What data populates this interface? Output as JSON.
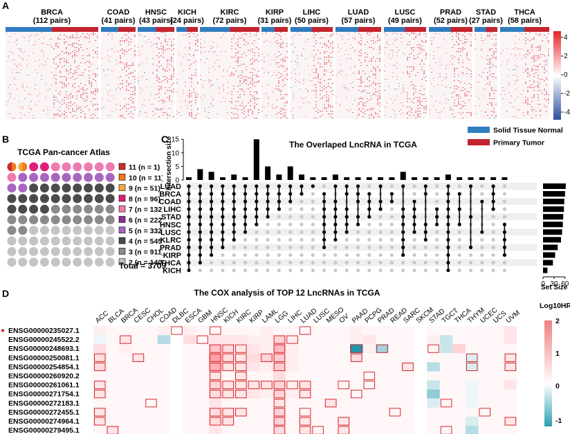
{
  "panels": {
    "a": "A",
    "b": "B",
    "c": "C",
    "d": "D"
  },
  "panel_a": {
    "cancers": [
      {
        "name": "BRCA",
        "pairs": "(112 pairs)"
      },
      {
        "name": "COAD",
        "pairs": "(41 pairs)"
      },
      {
        "name": "HNSC",
        "pairs": "(43 pairs)"
      },
      {
        "name": "KICH",
        "pairs": "(24 pairs)"
      },
      {
        "name": "KIRC",
        "pairs": "(72 pairs)"
      },
      {
        "name": "KIRP",
        "pairs": "(31 pairs)"
      },
      {
        "name": "LIHC",
        "pairs": "(50 pairs)"
      },
      {
        "name": "LUAD",
        "pairs": "(57 pairs)"
      },
      {
        "name": "LUSC",
        "pairs": "(49 pairs)"
      },
      {
        "name": "PRAD",
        "pairs": "(52 pairs)"
      },
      {
        "name": "STAD",
        "pairs": "(27 pairs)"
      },
      {
        "name": "THCA",
        "pairs": "(58 pairs)"
      }
    ],
    "colorbar_ticks": [
      "4",
      "2",
      "0",
      "-2",
      "-4"
    ],
    "group_legend": [
      {
        "label": "Solid Tissue Normal",
        "color": "#2f7cc0"
      },
      {
        "label": "Primary Tumor",
        "color": "#c4242e"
      }
    ]
  },
  "panel_b": {
    "title": "TCGA Pan-cancer Atlas",
    "legend": [
      {
        "label": "11 (n = 1)",
        "color": "#cc2a2a"
      },
      {
        "label": "10 (n = 11)",
        "color": "#ee7a1e"
      },
      {
        "label": "9 (n = 51)",
        "color": "#f4a640"
      },
      {
        "label": "8 (n = 96)",
        "color": "#e01e78"
      },
      {
        "label": "7 (n = 132)",
        "color": "#ee7bb0"
      },
      {
        "label": "6 (n = 222)",
        "color": "#8e2c96"
      },
      {
        "label": "5 (n = 332)",
        "color": "#a865c0"
      },
      {
        "label": "4 (n = 545)",
        "color": "#4b4b4b"
      },
      {
        "label": "3 (n = 911)",
        "color": "#8a8a8a"
      },
      {
        "label": "2 (n = 1408)",
        "color": "#c4c4c4"
      }
    ],
    "total": "Total = 3709"
  },
  "chart_data": [
    {
      "type": "bar",
      "title": "The Overlaped LncRNA in TCGA",
      "ylabel": "intersection size",
      "ylim": [
        0,
        15
      ],
      "yticks": [
        "0",
        "5",
        "10",
        "15"
      ],
      "sets": [
        "LUAD",
        "BRCA",
        "COAD",
        "LIHC",
        "STAD",
        "HNSC",
        "LUSC",
        "KLRC",
        "PRAD",
        "KIRP",
        "THCA",
        "KICH"
      ],
      "set_size_label": "Set Size",
      "set_size_ticks": [
        "0",
        "30",
        "60"
      ],
      "set_sizes": [
        62,
        60,
        58,
        57,
        55,
        54,
        52,
        49,
        40,
        33,
        27,
        12
      ],
      "values": [
        1,
        4,
        3,
        1,
        2,
        1,
        15,
        5,
        2,
        5,
        2,
        1,
        1,
        2,
        1,
        1,
        1,
        1,
        1,
        3,
        1,
        1,
        1,
        2,
        1,
        1,
        1,
        1,
        1
      ],
      "membership_rows": [
        [
          0,
          1,
          2,
          3,
          4,
          5,
          6,
          7,
          8,
          9,
          10,
          11
        ],
        [
          0,
          1,
          2,
          3,
          4,
          5,
          6,
          7,
          8,
          9,
          10
        ],
        [
          0,
          1,
          2,
          3,
          4,
          5,
          6,
          7,
          8,
          9
        ],
        [
          0,
          1,
          2,
          3,
          4,
          5,
          6,
          7,
          8
        ],
        [
          0,
          1,
          2,
          3,
          4,
          5,
          6,
          7
        ],
        [
          0,
          1,
          2,
          3,
          4,
          5,
          6
        ],
        [
          0,
          1,
          2,
          3,
          4,
          5
        ],
        [
          0,
          1,
          2,
          3,
          4
        ],
        [
          0,
          1,
          2,
          3
        ],
        [
          0,
          1,
          2
        ],
        [
          0,
          1
        ],
        [
          0
        ],
        [
          1,
          2,
          3,
          4,
          5,
          6,
          7,
          8
        ],
        [
          0,
          2,
          3,
          4,
          5,
          6,
          7
        ],
        [
          0,
          1,
          3,
          4,
          5,
          6
        ],
        [
          0,
          1,
          2,
          4,
          5
        ],
        [
          1,
          2,
          3,
          4
        ],
        [
          0,
          2,
          3
        ],
        [
          1,
          2
        ],
        [
          0,
          3,
          4,
          5,
          6,
          7,
          8,
          9
        ],
        [
          2,
          3,
          4,
          5,
          6
        ],
        [
          0,
          1,
          5,
          6,
          7
        ],
        [
          3,
          4,
          5
        ],
        [
          0,
          1,
          2,
          3,
          4,
          5,
          6,
          7,
          8,
          9,
          10,
          11
        ],
        [
          1,
          3,
          5
        ],
        [
          0,
          4,
          8
        ],
        [
          2,
          6
        ],
        [
          0,
          1,
          2,
          3
        ],
        [
          5,
          6,
          7,
          8,
          9
        ]
      ]
    },
    {
      "type": "heatmap",
      "title": "The COX analysis of TOP 12 LncRNAs in TCGA",
      "colorbar_title": "Log10HR",
      "colorbar_ticks": [
        "2",
        "1",
        "0",
        "-1"
      ],
      "x": [
        "ACC",
        "BLCA",
        "BRCA",
        "CESC",
        "CHOL",
        "COAD",
        "DLBC",
        "ESCA",
        "GBM",
        "HNSC",
        "KICH",
        "KIRC",
        "KIRP",
        "LAML",
        "LGG",
        "LIHC",
        "LUAD",
        "LUSC",
        "MESO",
        "OV",
        "PAAD",
        "PCPG",
        "PRAD",
        "READ",
        "SARC",
        "SKCM",
        "STAD",
        "TGCT",
        "THCA",
        "THYM",
        "UCEC",
        "UCS",
        "UVM"
      ],
      "y": [
        "ENSG00000235027.1",
        "ENSG00000245522.2",
        "ENSG00000248693.1",
        "ENSG00000250081.1",
        "ENSG00000254854.1",
        "ENSG00000260920.2",
        "ENSG00000261061.1",
        "ENSG00000271754.1",
        "ENSG00000272183.1",
        "ENSG00000272455.1",
        "ENSG00000274964.1",
        "ENSG00000279495.1"
      ],
      "highlighted_row": "ENSG00000235027.1",
      "values": [
        [
          0.2,
          0.1,
          0.1,
          0.1,
          0.1,
          0.2,
          0.0,
          0.2,
          0.1,
          0.1,
          0.1,
          0.1,
          0.1,
          0.2,
          0.1,
          0.1,
          0.1,
          0.1,
          0.1,
          0.1,
          0.2,
          0.1,
          0.1,
          0.1,
          0.1,
          0.0,
          0.1,
          0.1,
          0.1,
          0.1,
          0.1,
          0.1,
          0.3
        ],
        [
          -0.1,
          0.1,
          0.3,
          0.1,
          0.1,
          -0.4,
          0.0,
          0.4,
          0.1,
          0.3,
          0.3,
          0.3,
          0.2,
          0.2,
          0.5,
          0.2,
          0.1,
          0.1,
          0.1,
          0.1,
          0.2,
          0.3,
          0.1,
          0.1,
          0.1,
          0.0,
          0.2,
          -0.3,
          0.1,
          0.1,
          0.1,
          0.1,
          0.3
        ],
        [
          0.4,
          0.1,
          0.2,
          0.1,
          0.1,
          0.1,
          0.0,
          0.1,
          0.1,
          0.7,
          0.4,
          0.3,
          0.3,
          0.2,
          0.8,
          0.2,
          0.1,
          0.1,
          0.1,
          0.1,
          -1.2,
          0.2,
          -0.5,
          0.1,
          0.1,
          0.0,
          0.1,
          -0.3,
          0.5,
          0.1,
          0.1,
          0.1,
          0.1
        ],
        [
          0.4,
          0.1,
          0.1,
          0.3,
          0.1,
          0.1,
          0.0,
          0.1,
          0.1,
          1.1,
          0.4,
          0.3,
          0.4,
          0.5,
          0.6,
          0.2,
          0.1,
          0.1,
          0.1,
          0.1,
          0.4,
          0.1,
          0.1,
          0.1,
          0.1,
          0.0,
          0.1,
          0.1,
          0.1,
          -0.2,
          0.1,
          0.1,
          0.3
        ],
        [
          0.4,
          0.1,
          0.1,
          0.1,
          0.1,
          0.1,
          0.0,
          0.1,
          0.1,
          0.9,
          0.3,
          0.3,
          0.3,
          0.2,
          0.6,
          0.2,
          0.1,
          0.1,
          0.1,
          0.1,
          0.1,
          0.1,
          0.1,
          0.1,
          0.3,
          0.0,
          -0.4,
          0.1,
          0.1,
          -0.2,
          0.1,
          0.1,
          0.3
        ],
        [
          0.1,
          0.1,
          0.1,
          0.1,
          0.1,
          0.1,
          0.0,
          0.1,
          0.1,
          0.3,
          0.1,
          0.3,
          0.1,
          0.1,
          0.4,
          0.1,
          0.1,
          0.1,
          0.1,
          0.1,
          0.1,
          0.1,
          0.1,
          0.1,
          0.1,
          0.0,
          0.1,
          0.1,
          0.1,
          0.1,
          0.1,
          0.1,
          0.1
        ],
        [
          0.3,
          0.1,
          0.1,
          0.1,
          0.1,
          0.1,
          0.0,
          0.1,
          0.1,
          0.5,
          0.3,
          0.3,
          0.3,
          0.3,
          0.5,
          0.2,
          0.3,
          0.1,
          0.1,
          0.1,
          0.1,
          0.1,
          0.1,
          0.1,
          0.1,
          0.0,
          -0.3,
          0.1,
          0.1,
          -0.1,
          0.1,
          0.1,
          0.3
        ],
        [
          0.3,
          0.1,
          0.1,
          0.1,
          0.1,
          0.1,
          0.0,
          0.1,
          0.1,
          0.4,
          0.3,
          0.3,
          0.3,
          0.2,
          0.5,
          0.2,
          0.3,
          0.1,
          0.1,
          0.1,
          0.1,
          0.1,
          0.1,
          0.1,
          0.1,
          0.0,
          -0.6,
          0.1,
          0.1,
          -0.1,
          0.1,
          0.1,
          0.1
        ],
        [
          0.1,
          0.1,
          0.1,
          0.1,
          0.1,
          0.1,
          0.0,
          0.1,
          0.1,
          0.3,
          0.1,
          0.1,
          0.1,
          0.1,
          0.3,
          0.1,
          0.1,
          0.1,
          0.3,
          0.1,
          0.1,
          0.1,
          0.1,
          0.1,
          0.1,
          0.0,
          -0.2,
          0.1,
          0.1,
          -0.1,
          0.1,
          0.1,
          0.1
        ],
        [
          0.3,
          0.1,
          0.1,
          0.1,
          0.1,
          0.1,
          0.0,
          0.1,
          0.1,
          0.4,
          0.3,
          0.3,
          0.1,
          0.1,
          0.5,
          0.1,
          0.1,
          0.1,
          0.1,
          0.1,
          0.1,
          0.1,
          0.1,
          0.1,
          0.1,
          0.0,
          0.1,
          0.1,
          0.1,
          0.1,
          0.1,
          0.1,
          0.1
        ],
        [
          0.3,
          0.1,
          0.1,
          0.1,
          0.1,
          0.1,
          0.0,
          0.1,
          0.1,
          0.4,
          0.3,
          0.1,
          0.1,
          0.1,
          0.5,
          0.1,
          0.3,
          0.1,
          0.1,
          0.3,
          0.1,
          0.1,
          0.1,
          0.1,
          0.1,
          0.0,
          0.1,
          0.1,
          0.1,
          -0.2,
          0.1,
          0.1,
          0.3
        ],
        [
          0.1,
          0.3,
          0.1,
          0.1,
          0.1,
          0.1,
          0.0,
          0.1,
          0.1,
          0.3,
          0.1,
          0.1,
          0.1,
          0.1,
          0.4,
          0.1,
          0.3,
          0.1,
          0.1,
          0.3,
          0.1,
          0.1,
          0.1,
          0.1,
          0.1,
          0.0,
          0.1,
          0.1,
          0.1,
          -0.4,
          0.1,
          0.1,
          0.1
        ]
      ],
      "significant": [
        [
          6,
          9,
          16
        ],
        [
          2,
          8,
          14,
          15
        ],
        [
          9,
          10,
          11,
          14,
          20,
          22,
          26
        ],
        [
          0,
          3,
          9,
          10,
          11,
          13,
          14,
          20,
          29,
          32
        ],
        [
          0,
          9,
          10,
          11,
          14,
          24,
          29,
          32
        ],
        [
          9,
          11,
          21
        ],
        [
          0,
          9,
          10,
          11,
          12,
          13,
          14,
          15,
          16,
          19,
          21
        ],
        [
          0,
          9,
          10,
          11,
          14,
          16,
          20
        ],
        [
          4,
          14,
          18,
          27
        ],
        [
          0,
          9,
          10,
          11,
          14,
          16,
          23,
          30
        ],
        [
          0,
          9,
          10,
          14,
          16,
          19,
          32
        ],
        [
          1,
          14,
          16,
          17,
          19,
          27
        ]
      ]
    }
  ]
}
